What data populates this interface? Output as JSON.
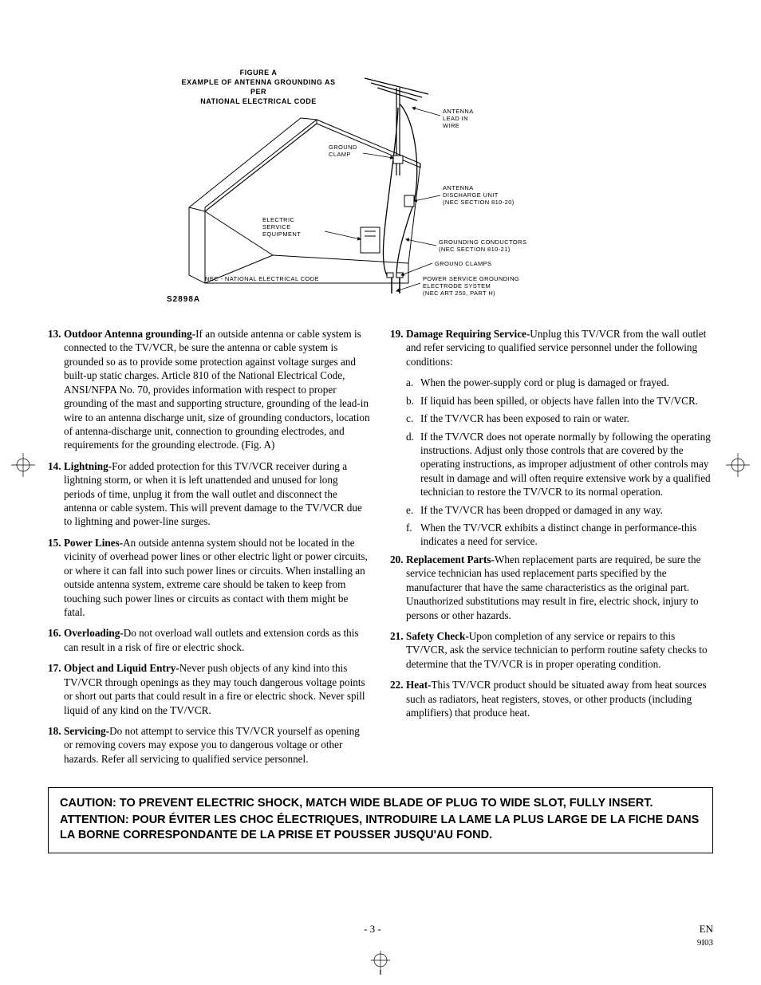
{
  "figure": {
    "title_line1": "FIGURE A",
    "title_line2": "EXAMPLE OF ANTENNA GROUNDING AS PER",
    "title_line3": "NATIONAL ELECTRICAL CODE",
    "code": "S2898A",
    "labels": {
      "antenna_lead": "ANTENNA\nLEAD IN\nWIRE",
      "ground_clamp_top": "GROUND\nCLAMP",
      "antenna_discharge": "ANTENNA\nDISCHARGE UNIT\n(NEC SECTION 810-20)",
      "electric_service": "ELECTRIC\nSERVICE\nEQUIPMENT",
      "grounding_conductors": "GROUNDING CONDUCTORS\n(NEC SECTION 810-21)",
      "ground_clamps": "GROUND CLAMPS",
      "power_service": "POWER SERVICE GROUNDING\nELECTRODE SYSTEM\n(NEC ART 250, PART H)",
      "nec_note": "NEC - NATIONAL ELECTRICAL CODE"
    }
  },
  "left_items": [
    {
      "num": "13.",
      "lead": "Outdoor Antenna grounding-",
      "text": "If an outside antenna or cable system is connected to the TV/VCR, be sure the antenna or cable system is grounded so as to provide some protection against voltage surges and built-up static charges. Article 810 of the National Electrical Code, ANSI/NFPA No. 70, provides information with respect to proper grounding of the mast and supporting structure, grounding of the lead-in wire to an antenna discharge unit, size of grounding conductors, location of antenna-discharge unit, connection to grounding electrodes, and requirements for the grounding electrode. (Fig. A)"
    },
    {
      "num": "14.",
      "lead": "Lightning-",
      "text": "For added protection for this TV/VCR receiver during a lightning storm, or when it is left unattended and unused for long periods of time, unplug it from the wall outlet and disconnect the antenna or cable system. This will prevent damage to the TV/VCR due to lightning and power-line surges."
    },
    {
      "num": "15.",
      "lead": "Power Lines-",
      "text": "An outside antenna system should not be located in the vicinity of overhead power lines or other electric light or power circuits, or where it can fall into such power lines or circuits. When installing an outside antenna system, extreme care should be taken to keep from touching such power lines or circuits as contact with them might be fatal."
    },
    {
      "num": "16.",
      "lead": "Overloading-",
      "text": "Do not overload wall outlets and extension cords as this can result in a risk of fire or electric shock."
    },
    {
      "num": "17.",
      "lead": "Object and Liquid Entry-",
      "text": "Never push objects of any kind into this TV/VCR through openings as they may touch dangerous voltage points or short out parts that could result in a fire or electric shock. Never spill liquid of any kind on the TV/VCR."
    },
    {
      "num": "18.",
      "lead": "Servicing-",
      "text": "Do not attempt to service this TV/VCR yourself as opening or removing covers may expose you to dangerous voltage or other hazards. Refer all servicing to qualified service personnel."
    }
  ],
  "right_items_before_sub": [
    {
      "num": "19.",
      "lead": "Damage Requiring Service-",
      "text": "Unplug this TV/VCR from the wall outlet and refer servicing to qualified service personnel under the following conditions:"
    }
  ],
  "sublist": [
    {
      "mark": "a.",
      "text": "When the power-supply cord or plug is damaged or frayed."
    },
    {
      "mark": "b.",
      "text": "If liquid has been spilled, or objects have fallen into the TV/VCR."
    },
    {
      "mark": "c.",
      "text": "If the TV/VCR has been exposed to rain or water."
    },
    {
      "mark": "d.",
      "text": "If the TV/VCR does not operate normally by following the operating instructions. Adjust only those controls that are covered by the operating instructions, as improper adjustment of other controls may result in damage and will often require extensive work by a qualified technician to restore the TV/VCR to its normal operation."
    },
    {
      "mark": "e.",
      "text": "If the TV/VCR has been dropped or damaged in any way."
    },
    {
      "mark": "f.",
      "text": "When the TV/VCR exhibits a distinct change in performance-this indicates a need for service."
    }
  ],
  "right_items_after_sub": [
    {
      "num": "20.",
      "lead": "Replacement Parts-",
      "text": "When replacement parts are required, be sure the service technician has used replacement parts specified by the manufacturer that have the same characteristics as the original part. Unauthorized substitutions may result in fire, electric shock, injury to persons or other hazards."
    },
    {
      "num": "21.",
      "lead": "Safety Check-",
      "text": "Upon completion of any service or repairs to this TV/VCR, ask the service technician to perform routine safety checks to determine that the TV/VCR is in proper operating condition."
    },
    {
      "num": "22.",
      "lead": "Heat-",
      "text": "This TV/VCR product should be situated away from heat sources such as radiators, heat registers, stoves, or other products (including amplifiers) that produce heat."
    }
  ],
  "caution": {
    "line1": "CAUTION: TO PREVENT ELECTRIC SHOCK, MATCH WIDE BLADE OF PLUG TO WIDE SLOT, FULLY INSERT.",
    "line2": "ATTENTION: POUR ÉVITER LES CHOC ÉLECTRIQUES, INTRODUIRE LA LAME LA PLUS LARGE DE LA FICHE DANS LA BORNE CORRESPONDANTE DE LA PRISE ET POUSSER JUSQU'AU FOND."
  },
  "footer": {
    "page": "- 3 -",
    "lang": "EN",
    "code": "9I03"
  }
}
